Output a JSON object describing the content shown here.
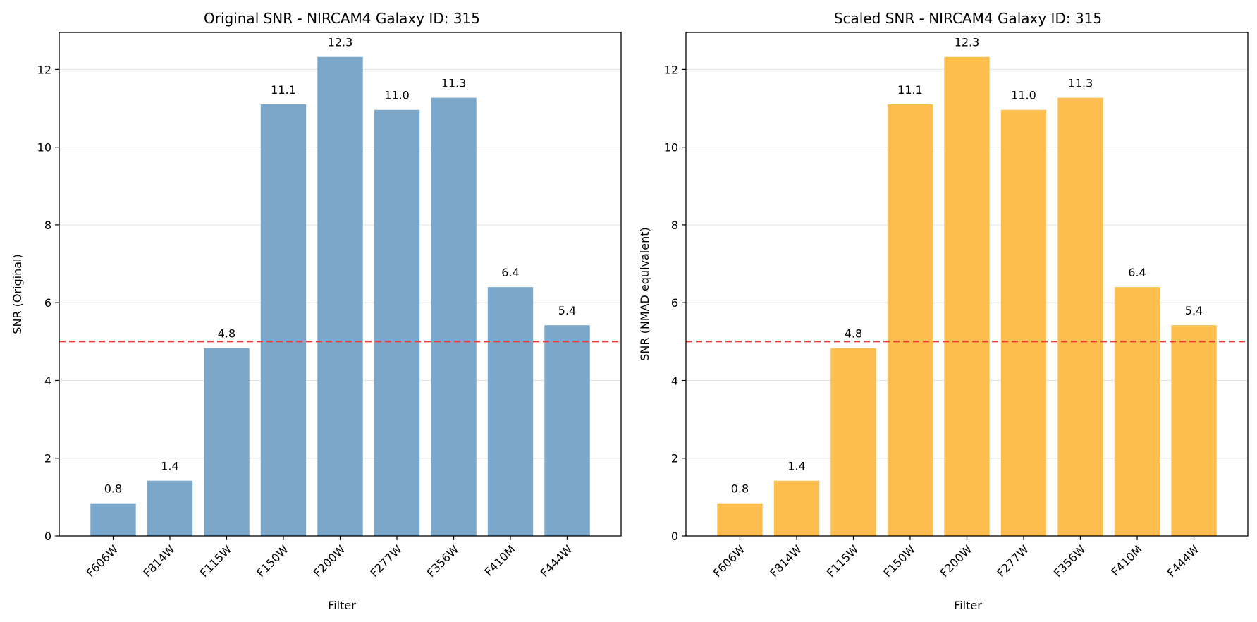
{
  "chart_data": [
    {
      "type": "bar",
      "title": "Original SNR - NIRCAM4 Galaxy ID: 315",
      "xlabel": "Filter",
      "ylabel": "SNR (Original)",
      "categories": [
        "F606W",
        "F814W",
        "F115W",
        "F150W",
        "F200W",
        "F277W",
        "F356W",
        "F410M",
        "F444W"
      ],
      "values": [
        0.84,
        1.42,
        4.83,
        11.1,
        12.32,
        10.96,
        11.27,
        6.4,
        5.42
      ],
      "value_labels": [
        "0.8",
        "1.4",
        "4.8",
        "11.1",
        "12.3",
        "11.0",
        "11.3",
        "6.4",
        "5.4"
      ],
      "ylim": [
        0,
        12.95
      ],
      "yticks": [
        0,
        2,
        4,
        6,
        8,
        10,
        12
      ],
      "threshold": 5,
      "bar_color": "#7ba7cb",
      "threshold_color": "#f33a3a",
      "grid": true
    },
    {
      "type": "bar",
      "title": "Scaled SNR - NIRCAM4 Galaxy ID: 315",
      "xlabel": "Filter",
      "ylabel": "SNR (NMAD equivalent)",
      "categories": [
        "F606W",
        "F814W",
        "F115W",
        "F150W",
        "F200W",
        "F277W",
        "F356W",
        "F410M",
        "F444W"
      ],
      "values": [
        0.84,
        1.42,
        4.83,
        11.1,
        12.32,
        10.96,
        11.27,
        6.4,
        5.42
      ],
      "value_labels": [
        "0.8",
        "1.4",
        "4.8",
        "11.1",
        "12.3",
        "11.0",
        "11.3",
        "6.4",
        "5.4"
      ],
      "ylim": [
        0,
        12.95
      ],
      "yticks": [
        0,
        2,
        4,
        6,
        8,
        10,
        12
      ],
      "threshold": 5,
      "bar_color": "#fdbe4f",
      "threshold_color": "#f33a3a",
      "grid": true
    }
  ]
}
